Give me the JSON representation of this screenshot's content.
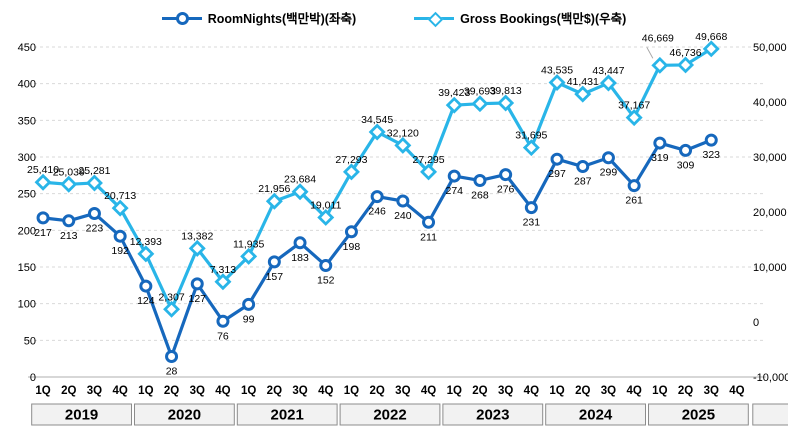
{
  "legend": {
    "items": [
      {
        "label": "RoomNights(백만박)(좌축)",
        "marker": "circle-marker-icon",
        "color": "#1668bd"
      },
      {
        "label": "Gross Bookings(백만$)(우축)",
        "marker": "diamond-marker-icon",
        "color": "#29b5e8"
      }
    ]
  },
  "chart_data": {
    "type": "line",
    "title": "",
    "years": [
      "2019",
      "2020",
      "2021",
      "2022",
      "2023",
      "2024",
      "2025"
    ],
    "quarter_labels": [
      "1Q",
      "2Q",
      "3Q",
      "4Q",
      "1Q",
      "2Q",
      "3Q",
      "4Q",
      "1Q",
      "2Q",
      "3Q",
      "4Q",
      "1Q",
      "2Q",
      "3Q",
      "4Q",
      "1Q",
      "2Q",
      "3Q",
      "4Q",
      "1Q",
      "2Q",
      "3Q",
      "4Q",
      "1Q",
      "2Q",
      "3Q",
      "4Q"
    ],
    "series": [
      {
        "name": "RoomNights(백만박)(좌축)",
        "axis": "left",
        "marker": "circle",
        "color": "#1668bd",
        "values": [
          217,
          213,
          223,
          192,
          124,
          28,
          127,
          76,
          99,
          157,
          183,
          152,
          198,
          246,
          240,
          211,
          274,
          268,
          276,
          231,
          297,
          287,
          299,
          261,
          319,
          309,
          323,
          null
        ]
      },
      {
        "name": "Gross Bookings(백만$)(우축)",
        "axis": "right",
        "marker": "diamond",
        "color": "#29b5e8",
        "values": [
          25410,
          25039,
          25281,
          20713,
          12393,
          2307,
          13382,
          7313,
          11935,
          21956,
          23684,
          19011,
          27293,
          34545,
          32120,
          27295,
          39423,
          39693,
          39813,
          31695,
          43535,
          41431,
          43447,
          37167,
          46669,
          46736,
          49668,
          null
        ]
      }
    ],
    "left_axis": {
      "min": 0,
      "max": 450,
      "step": 50,
      "tick_labels": [
        "0",
        "50",
        "100",
        "150",
        "200",
        "250",
        "300",
        "350",
        "400",
        "450"
      ]
    },
    "right_axis": {
      "min": -10000,
      "max": 50000,
      "step": 10000,
      "tick_labels": [
        "-10,000",
        "0",
        "10,000",
        "20,000",
        "30,000",
        "40,000",
        "50,000"
      ]
    },
    "grid": "horizontal-dashed",
    "legend_position": "top-center",
    "colors": {
      "gridline": "#d9d9d9",
      "axis_line": "#bfbfbf",
      "label_text": "#000000",
      "year_box_fill": "#f2f2f2",
      "year_box_border": "#8c8c8c"
    }
  }
}
